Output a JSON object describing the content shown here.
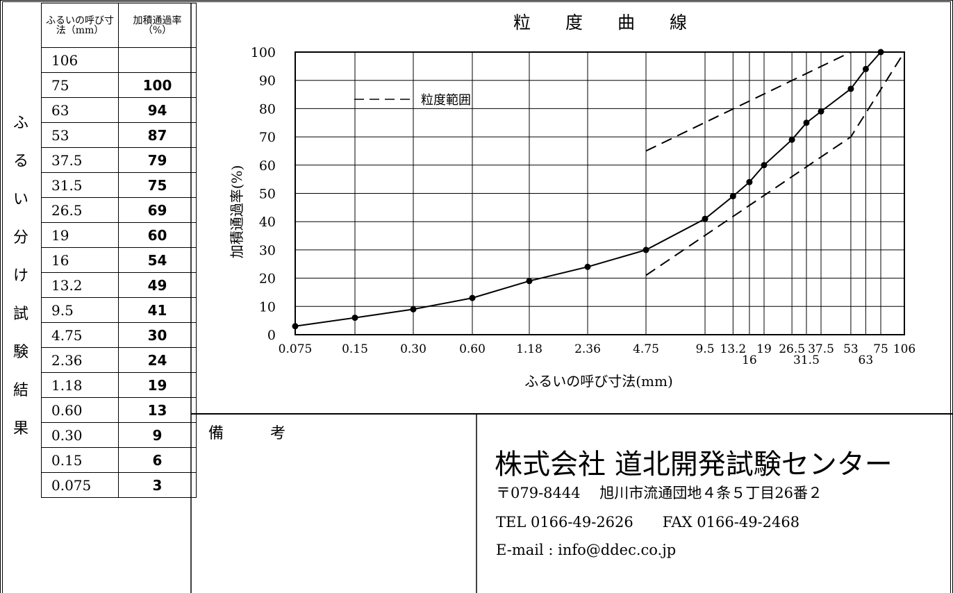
{
  "table": {
    "header_size": "ふるいの呼び寸法（mm）",
    "header_pass": "加積通過率（%）",
    "rows": [
      {
        "size": "106",
        "pass": ""
      },
      {
        "size": "75",
        "pass": "100"
      },
      {
        "size": "63",
        "pass": "94"
      },
      {
        "size": "53",
        "pass": "87"
      },
      {
        "size": "37.5",
        "pass": "79"
      },
      {
        "size": "31.5",
        "pass": "75"
      },
      {
        "size": "26.5",
        "pass": "69"
      },
      {
        "size": "19",
        "pass": "60"
      },
      {
        "size": "16",
        "pass": "54"
      },
      {
        "size": "13.2",
        "pass": "49"
      },
      {
        "size": "9.5",
        "pass": "41"
      },
      {
        "size": "4.75",
        "pass": "30"
      },
      {
        "size": "2.36",
        "pass": "24"
      },
      {
        "size": "1.18",
        "pass": "19"
      },
      {
        "size": "0.60",
        "pass": "13"
      },
      {
        "size": "0.30",
        "pass": "9"
      },
      {
        "size": "0.15",
        "pass": "6"
      },
      {
        "size": "0.075",
        "pass": "3"
      }
    ]
  },
  "side_title": [
    "ふ",
    "る",
    "い",
    "分",
    "け",
    "試",
    "験",
    "結",
    "果"
  ],
  "remarks_label": "備 考",
  "company": {
    "name": "株式会社 道北開発試験センター",
    "address": "〒079-8444　 旭川市流通団地４条５丁目26番２",
    "tel": "TEL 0166-49-2626　　FAX 0166-49-2468",
    "email": "E-mail : info@ddec.co.jp"
  },
  "chart_data": {
    "type": "line",
    "title": "粒 度 曲 線",
    "xlabel": "ふるいの呼び寸法(mm)",
    "ylabel": "加積通過率(%)",
    "ylim": [
      0,
      100
    ],
    "yticks": [
      0,
      10,
      20,
      30,
      40,
      50,
      60,
      70,
      80,
      90,
      100
    ],
    "x_ticks": [
      {
        "value": 0.075,
        "label": "0.075",
        "row": 0
      },
      {
        "value": 0.15,
        "label": "0.15",
        "row": 0
      },
      {
        "value": 0.3,
        "label": "0.30",
        "row": 0
      },
      {
        "value": 0.6,
        "label": "0.60",
        "row": 0
      },
      {
        "value": 1.18,
        "label": "1.18",
        "row": 0
      },
      {
        "value": 2.36,
        "label": "2.36",
        "row": 0
      },
      {
        "value": 4.75,
        "label": "4.75",
        "row": 0
      },
      {
        "value": 9.5,
        "label": "9.5",
        "row": 0
      },
      {
        "value": 13.2,
        "label": "13.2",
        "row": 0
      },
      {
        "value": 16,
        "label": "16",
        "row": 1
      },
      {
        "value": 19,
        "label": "19",
        "row": 0
      },
      {
        "value": 26.5,
        "label": "26.5",
        "row": 0
      },
      {
        "value": 31.5,
        "label": "31.5",
        "row": 1
      },
      {
        "value": 37.5,
        "label": "37.5",
        "row": 0
      },
      {
        "value": 53,
        "label": "53",
        "row": 0
      },
      {
        "value": 63,
        "label": "63",
        "row": 1
      },
      {
        "value": 75,
        "label": "75",
        "row": 0
      },
      {
        "value": 106,
        "label": "106",
        "row": 0
      }
    ],
    "grid": true,
    "legend": {
      "label": "粒度範囲",
      "placement": "top-left"
    },
    "series": [
      {
        "style": "solid-markers",
        "points": [
          [
            0.075,
            3
          ],
          [
            0.15,
            6
          ],
          [
            0.3,
            9
          ],
          [
            0.6,
            13
          ],
          [
            1.18,
            19
          ],
          [
            2.36,
            24
          ],
          [
            4.75,
            30
          ],
          [
            9.5,
            41
          ],
          [
            13.2,
            49
          ],
          [
            16,
            54
          ],
          [
            19,
            60
          ],
          [
            26.5,
            69
          ],
          [
            31.5,
            75
          ],
          [
            37.5,
            79
          ],
          [
            53,
            87
          ],
          [
            63,
            94
          ],
          [
            75,
            100
          ]
        ]
      },
      {
        "name": "粒度範囲",
        "style": "dashed",
        "points": [
          [
            4.75,
            65
          ],
          [
            53,
            100
          ]
        ]
      },
      {
        "name": "粒度範囲",
        "style": "dashed",
        "points": [
          [
            4.75,
            21
          ],
          [
            53,
            70
          ],
          [
            106,
            100
          ]
        ]
      }
    ]
  }
}
